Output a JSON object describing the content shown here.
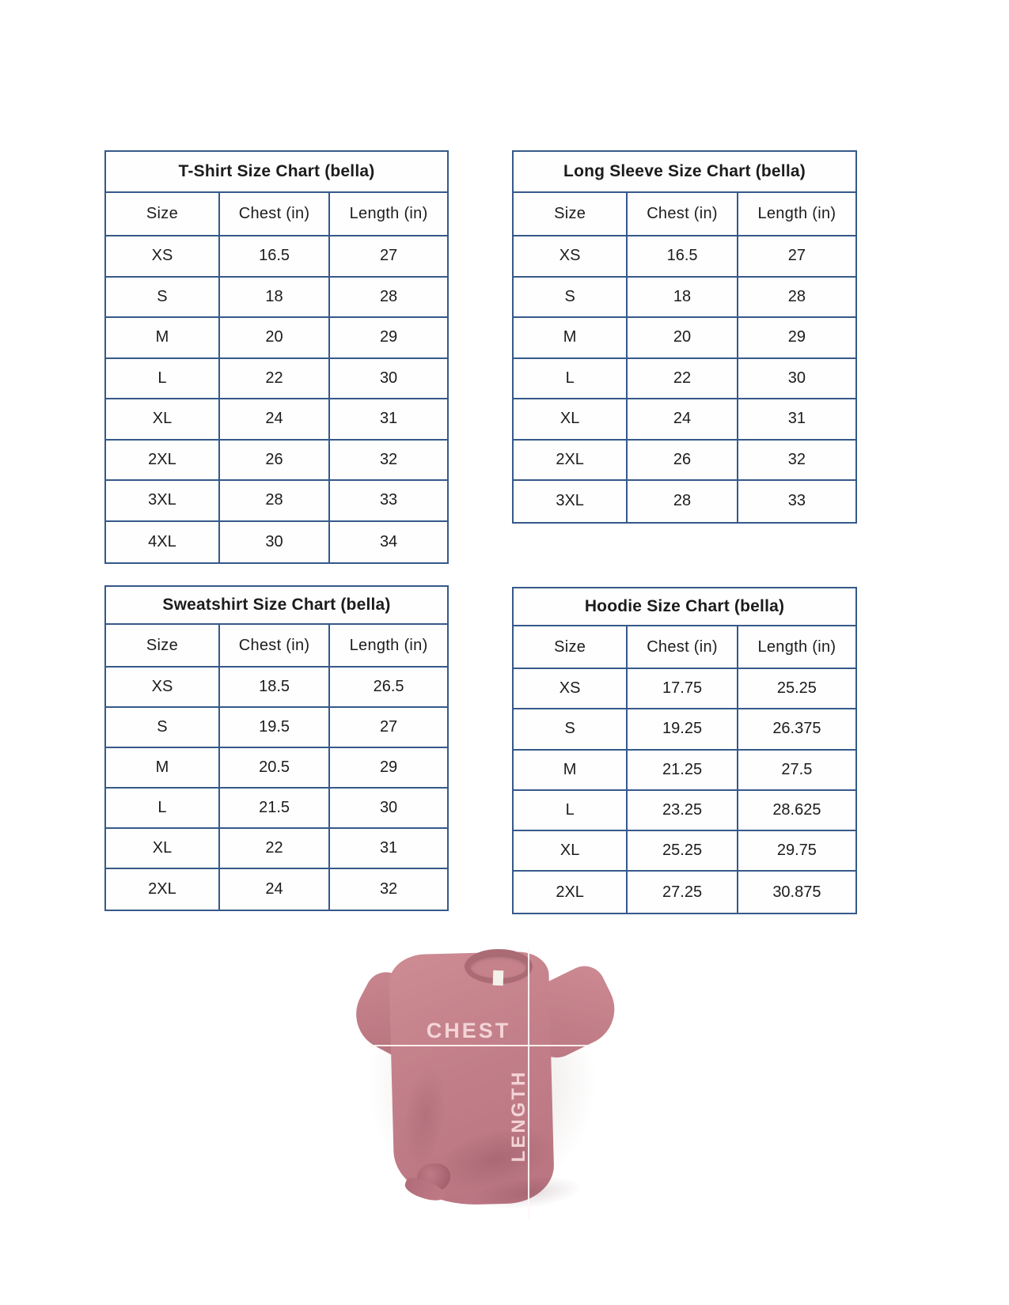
{
  "style": {
    "table_border_color": "#36598a",
    "text_color": "#1c1c1c",
    "shirt_color": "#c5838c",
    "wood_color": "#efeae2",
    "measure_line_color": "#fff7f6"
  },
  "tables": [
    {
      "id": "tshirt",
      "title": "T-Shirt Size Chart  (bella)",
      "headers": [
        "Size",
        "Chest (in)",
        "Length (in)"
      ],
      "rows": [
        [
          "XS",
          "16.5",
          "27"
        ],
        [
          "S",
          "18",
          "28"
        ],
        [
          "M",
          "20",
          "29"
        ],
        [
          "L",
          "22",
          "30"
        ],
        [
          "XL",
          "24",
          "31"
        ],
        [
          "2XL",
          "26",
          "32"
        ],
        [
          "3XL",
          "28",
          "33"
        ],
        [
          "4XL",
          "30",
          "34"
        ]
      ]
    },
    {
      "id": "longsleeve",
      "title": "Long Sleeve Size Chart  (bella)",
      "headers": [
        "Size",
        "Chest (in)",
        "Length (in)"
      ],
      "rows": [
        [
          "XS",
          "16.5",
          "27"
        ],
        [
          "S",
          "18",
          "28"
        ],
        [
          "M",
          "20",
          "29"
        ],
        [
          "L",
          "22",
          "30"
        ],
        [
          "XL",
          "24",
          "31"
        ],
        [
          "2XL",
          "26",
          "32"
        ],
        [
          "3XL",
          "28",
          "33"
        ]
      ]
    },
    {
      "id": "sweatshirt",
      "title": "Sweatshirt Size Chart (bella)",
      "headers": [
        "Size",
        "Chest (in)",
        "Length (in)"
      ],
      "rows": [
        [
          "XS",
          "18.5",
          "26.5"
        ],
        [
          "S",
          "19.5",
          "27"
        ],
        [
          "M",
          "20.5",
          "29"
        ],
        [
          "L",
          "21.5",
          "30"
        ],
        [
          "XL",
          "22",
          "31"
        ],
        [
          "2XL",
          "24",
          "32"
        ]
      ]
    },
    {
      "id": "hoodie",
      "title": "Hoodie Size Chart (bella)",
      "headers": [
        "Size",
        "Chest (in)",
        "Length (in)"
      ],
      "rows": [
        [
          "XS",
          "17.75",
          "25.25"
        ],
        [
          "S",
          "19.25",
          "26.375"
        ],
        [
          "M",
          "21.25",
          "27.5"
        ],
        [
          "L",
          "23.25",
          "28.625"
        ],
        [
          "XL",
          "25.25",
          "29.75"
        ],
        [
          "2XL",
          "27.25",
          "30.875"
        ]
      ]
    }
  ],
  "photo": {
    "chest_label": "CHEST",
    "length_label": "LENGTH"
  }
}
